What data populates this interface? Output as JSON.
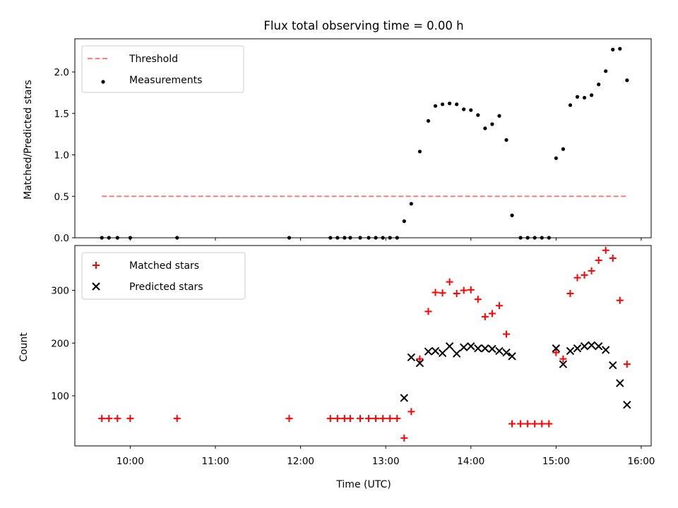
{
  "chart_data": [
    {
      "type": "scatter",
      "title": "Flux total observing time = 0.00 h",
      "xlabel": "",
      "ylabel": "Matched/Predicted stars",
      "xlim": [
        "09:21",
        "16:07"
      ],
      "ylim": [
        0,
        2.4
      ],
      "yticks": [
        "0.0",
        "0.5",
        "1.0",
        "1.5",
        "2.0"
      ],
      "legend": "top-left",
      "grid": false,
      "series": [
        {
          "name": "Threshold",
          "kind": "line",
          "style": "dashed",
          "color": "#ff7f7f",
          "x": [
            "09:40",
            "15:50"
          ],
          "y": [
            0.5,
            0.5
          ]
        },
        {
          "name": "Measurements",
          "kind": "scatter",
          "color": "#000000",
          "x": [
            "09:40",
            "09:45",
            "09:51",
            "10:00",
            "10:33",
            "11:52",
            "12:21",
            "12:26",
            "12:31",
            "12:35",
            "12:42",
            "12:48",
            "12:53",
            "12:58",
            "13:03",
            "13:08",
            "13:13",
            "13:18",
            "13:24",
            "13:30",
            "13:35",
            "13:40",
            "13:45",
            "13:50",
            "13:55",
            "14:00",
            "14:05",
            "14:10",
            "14:15",
            "14:20",
            "14:25",
            "14:29",
            "14:35",
            "14:40",
            "14:45",
            "14:50",
            "14:55",
            "15:00",
            "15:05",
            "15:10",
            "15:15",
            "15:20",
            "15:25",
            "15:30",
            "15:35",
            "15:40",
            "15:45",
            "15:50"
          ],
          "y": [
            0,
            0,
            0,
            0,
            0,
            0,
            0,
            0,
            0,
            0,
            0,
            0,
            0,
            0,
            0,
            0,
            0.2,
            0.41,
            1.04,
            1.41,
            1.59,
            1.61,
            1.62,
            1.61,
            1.55,
            1.54,
            1.48,
            1.32,
            1.37,
            1.47,
            1.18,
            0.27,
            0,
            0,
            0,
            0,
            0,
            0.96,
            1.07,
            1.6,
            1.7,
            1.69,
            1.72,
            1.85,
            2.01,
            2.27,
            2.28,
            1.9
          ]
        }
      ]
    },
    {
      "type": "scatter",
      "title": "",
      "xlabel": "Time (UTC)",
      "ylabel": "Count",
      "xlim": [
        "09:21",
        "16:07"
      ],
      "xticks": [
        "10:00",
        "11:00",
        "12:00",
        "13:00",
        "14:00",
        "15:00",
        "16:00"
      ],
      "ylim": [
        5,
        385
      ],
      "yticks": [
        "100",
        "200",
        "300"
      ],
      "legend": "top-left",
      "grid": false,
      "series": [
        {
          "name": "Matched stars",
          "marker": "+",
          "color": "#ff0000",
          "x": [
            "09:40",
            "09:45",
            "09:51",
            "10:00",
            "10:33",
            "11:52",
            "12:21",
            "12:26",
            "12:31",
            "12:35",
            "12:42",
            "12:48",
            "12:53",
            "12:58",
            "13:03",
            "13:08",
            "13:13",
            "13:18",
            "13:24",
            "13:30",
            "13:35",
            "13:40",
            "13:45",
            "13:50",
            "13:55",
            "14:00",
            "14:05",
            "14:10",
            "14:15",
            "14:20",
            "14:25",
            "14:29",
            "14:35",
            "14:40",
            "14:45",
            "14:50",
            "14:55",
            "15:00",
            "15:05",
            "15:10",
            "15:15",
            "15:20",
            "15:25",
            "15:30",
            "15:35",
            "15:40",
            "15:45",
            "15:50"
          ],
          "y": [
            57,
            57,
            57,
            57,
            57,
            57,
            57,
            57,
            57,
            57,
            57,
            57,
            57,
            57,
            57,
            57,
            20,
            70,
            170,
            260,
            296,
            295,
            316,
            294,
            300,
            301,
            283,
            250,
            256,
            271,
            217,
            47,
            47,
            47,
            47,
            47,
            47,
            182,
            170,
            294,
            324,
            329,
            337,
            357,
            376,
            361,
            281,
            160
          ]
        },
        {
          "name": "Predicted stars",
          "marker": "x",
          "color": "#000000",
          "x": [
            "13:13",
            "13:18",
            "13:24",
            "13:30",
            "13:35",
            "13:40",
            "13:45",
            "13:50",
            "13:55",
            "14:00",
            "14:05",
            "14:10",
            "14:15",
            "14:20",
            "14:25",
            "14:29",
            "15:00",
            "15:05",
            "15:10",
            "15:15",
            "15:20",
            "15:25",
            "15:30",
            "15:35",
            "15:40",
            "15:45",
            "15:50"
          ],
          "y": [
            96,
            173,
            162,
            184,
            185,
            181,
            194,
            180,
            192,
            194,
            190,
            190,
            189,
            185,
            182,
            175,
            190,
            160,
            185,
            190,
            194,
            196,
            194,
            187,
            158,
            124,
            83
          ]
        }
      ]
    }
  ]
}
